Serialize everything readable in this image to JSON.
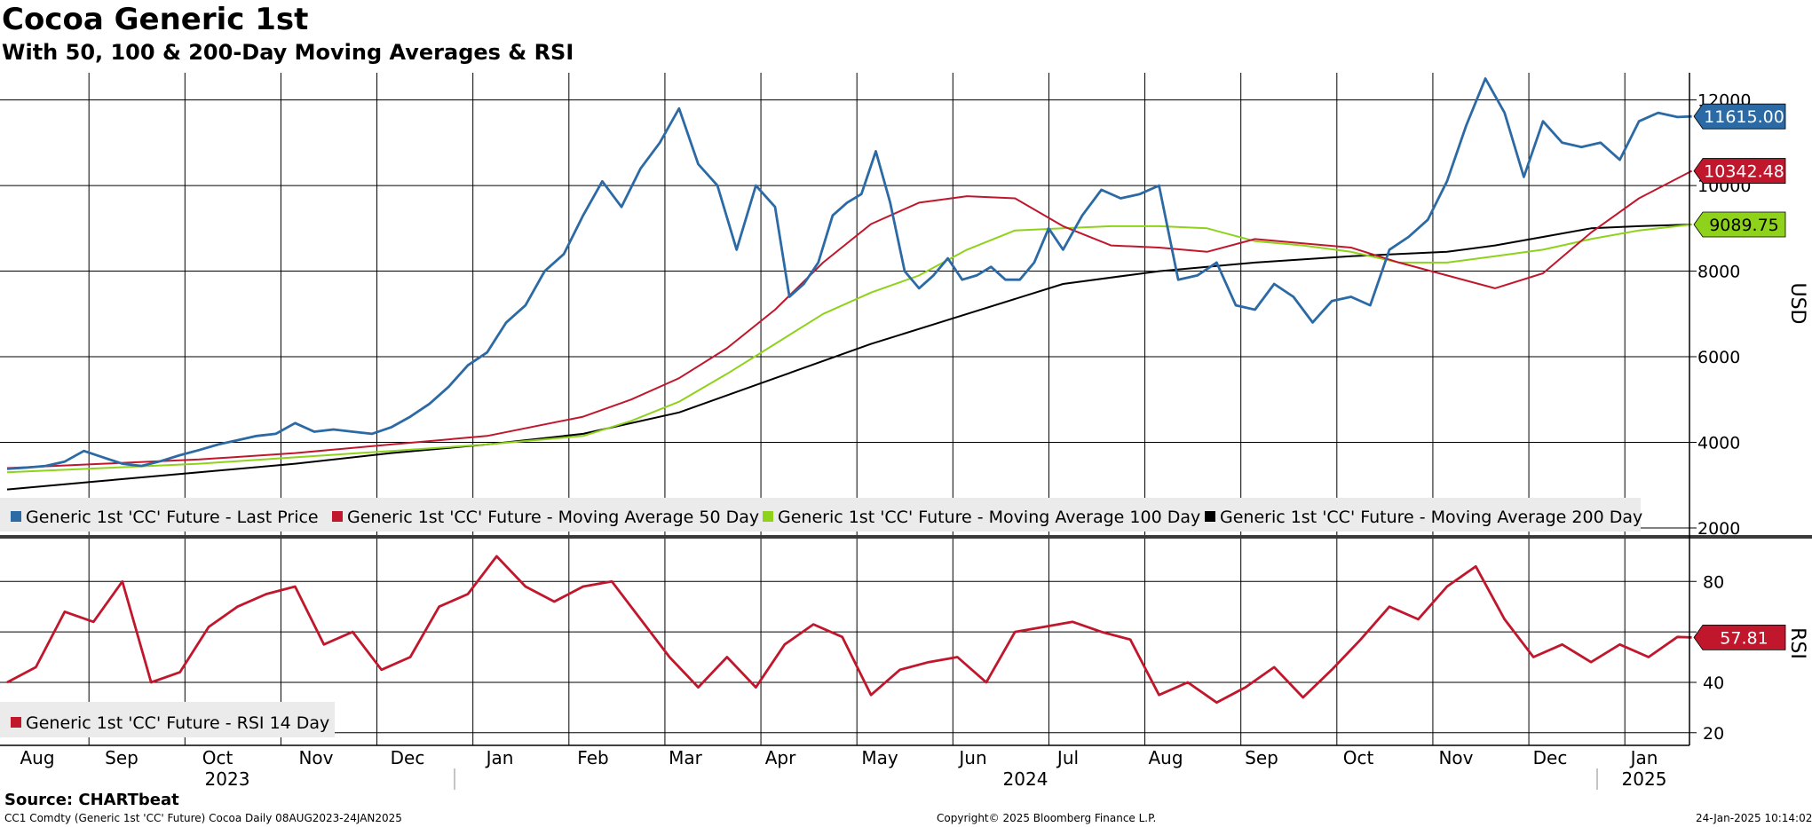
{
  "title": "Cocoa Generic 1st",
  "subtitle": "With 50, 100 & 200-Day Moving Averages & RSI",
  "footer": {
    "source": "Source: CHARTbeat",
    "info": "CC1 Comdty (Generic 1st 'CC' Future) Cocoa  Daily 08AUG2023-24JAN2025",
    "copyright": "Copyright© 2025 Bloomberg Finance L.P.",
    "timestamp": "24-Jan-2025 10:14:02"
  },
  "colors": {
    "last_price": "#2b6aa5",
    "ma50": "#c0172d",
    "ma100": "#8fd21b",
    "ma200": "#000000",
    "rsi": "#c0172d"
  },
  "chart_data": [
    {
      "type": "line",
      "panel": "price",
      "ylabel": "USD",
      "ylim": [
        2000,
        12800
      ],
      "yticks": [
        2000,
        4000,
        6000,
        8000,
        10000,
        12000
      ],
      "grid": true,
      "legend_position": "bottom-left",
      "x_months": [
        "Aug",
        "Sep",
        "Oct",
        "Nov",
        "Dec",
        "Jan",
        "Feb",
        "Mar",
        "Apr",
        "May",
        "Jun",
        "Jul",
        "Aug",
        "Sep",
        "Oct",
        "Nov",
        "Dec",
        "Jan"
      ],
      "x_years": [
        "2023",
        "2024",
        "2025"
      ],
      "x_range": [
        0,
        17.6
      ],
      "series": [
        {
          "name": "Generic 1st 'CC' Future - Last Price",
          "key": "last_price",
          "last_value": "11615.00",
          "x": [
            0,
            0.2,
            0.4,
            0.6,
            0.8,
            1.0,
            1.2,
            1.4,
            1.6,
            1.8,
            2.0,
            2.2,
            2.4,
            2.6,
            2.8,
            3.0,
            3.2,
            3.4,
            3.6,
            3.8,
            4.0,
            4.2,
            4.4,
            4.6,
            4.8,
            5.0,
            5.2,
            5.4,
            5.6,
            5.8,
            6.0,
            6.2,
            6.4,
            6.6,
            6.8,
            7.0,
            7.2,
            7.4,
            7.6,
            7.8,
            8.0,
            8.15,
            8.3,
            8.45,
            8.6,
            8.75,
            8.9,
            9.05,
            9.2,
            9.35,
            9.5,
            9.65,
            9.8,
            9.95,
            10.1,
            10.25,
            10.4,
            10.55,
            10.7,
            10.85,
            11.0,
            11.2,
            11.4,
            11.6,
            11.8,
            12.0,
            12.2,
            12.4,
            12.6,
            12.8,
            13.0,
            13.2,
            13.4,
            13.6,
            13.8,
            14.0,
            14.2,
            14.4,
            14.6,
            14.8,
            15.0,
            15.2,
            15.4,
            15.6,
            15.8,
            16.0,
            16.2,
            16.4,
            16.6,
            16.8,
            17.0,
            17.2,
            17.4,
            17.55
          ],
          "values": [
            3380,
            3410,
            3450,
            3550,
            3800,
            3650,
            3500,
            3450,
            3560,
            3700,
            3820,
            3950,
            4050,
            4150,
            4200,
            4450,
            4250,
            4300,
            4250,
            4200,
            4350,
            4600,
            4900,
            5300,
            5800,
            6100,
            6800,
            7200,
            8000,
            8400,
            9300,
            10100,
            9500,
            10400,
            11000,
            11800,
            10500,
            10000,
            8500,
            10000,
            9500,
            7400,
            7700,
            8200,
            9300,
            9600,
            9800,
            10800,
            9600,
            8000,
            7600,
            7900,
            8300,
            7800,
            7900,
            8100,
            7800,
            7800,
            8200,
            9000,
            8500,
            9300,
            9900,
            9700,
            9800,
            10000,
            7800,
            7900,
            8200,
            7200,
            7100,
            7700,
            7400,
            6800,
            7300,
            7400,
            7200,
            8500,
            8800,
            9200,
            10100,
            11400,
            12500,
            11700,
            10200,
            11500,
            11000,
            10900,
            11000,
            10600,
            11500,
            11700,
            11600,
            11615
          ]
        },
        {
          "name": "Generic 1st 'CC' Future - Moving Average 50 Day",
          "key": "ma50",
          "last_value": "10342.48",
          "x": [
            0,
            1,
            2,
            3,
            4,
            5,
            6,
            6.5,
            7,
            7.5,
            8,
            8.5,
            9,
            9.5,
            10,
            10.5,
            11,
            11.5,
            12,
            12.5,
            13,
            13.5,
            14,
            14.5,
            15,
            15.5,
            16,
            16.5,
            17,
            17.55
          ],
          "values": [
            3400,
            3500,
            3600,
            3750,
            3950,
            4150,
            4600,
            5000,
            5500,
            6200,
            7100,
            8200,
            9100,
            9600,
            9750,
            9700,
            9050,
            8600,
            8550,
            8450,
            8750,
            8650,
            8550,
            8200,
            7900,
            7600,
            7950,
            8900,
            9700,
            10342
          ]
        },
        {
          "name": "Generic 1st 'CC' Future - Moving Average 100 Day",
          "key": "ma100",
          "last_value": "9089.75",
          "x": [
            0,
            1,
            2,
            3,
            4,
            5,
            6,
            6.5,
            7,
            7.5,
            8,
            8.5,
            9,
            9.5,
            10,
            10.5,
            11,
            11.5,
            12,
            12.5,
            13,
            13.5,
            14,
            14.5,
            15,
            15.5,
            16,
            16.5,
            17,
            17.55
          ],
          "values": [
            3300,
            3400,
            3500,
            3650,
            3800,
            3950,
            4150,
            4500,
            4950,
            5600,
            6300,
            7000,
            7500,
            7900,
            8500,
            8950,
            9000,
            9050,
            9050,
            9000,
            8700,
            8600,
            8450,
            8200,
            8200,
            8350,
            8500,
            8750,
            8950,
            9089
          ]
        },
        {
          "name": "Generic 1st 'CC' Future - Moving Average 200 Day",
          "key": "ma200",
          "last_value": "9089.75",
          "x": [
            0,
            1,
            2,
            3,
            4,
            5,
            6,
            7,
            8,
            9,
            10,
            11,
            12,
            13,
            14,
            15,
            15.5,
            16,
            16.5,
            17,
            17.55
          ],
          "values": [
            2900,
            3100,
            3300,
            3500,
            3750,
            3950,
            4200,
            4700,
            5500,
            6300,
            7000,
            7700,
            8000,
            8200,
            8350,
            8450,
            8600,
            8800,
            9000,
            9050,
            9089
          ]
        }
      ]
    },
    {
      "type": "line",
      "panel": "rsi",
      "ylabel": "RSI",
      "ylim": [
        15,
        97
      ],
      "yticks": [
        20,
        40,
        60,
        80
      ],
      "grid": true,
      "legend_position": "bottom-left",
      "series": [
        {
          "name": "Generic 1st 'CC' Future - RSI 14 Day",
          "key": "rsi",
          "last_value": "57.81",
          "x": [
            0,
            0.3,
            0.6,
            0.9,
            1.2,
            1.5,
            1.8,
            2.1,
            2.4,
            2.7,
            3.0,
            3.3,
            3.6,
            3.9,
            4.2,
            4.5,
            4.8,
            5.1,
            5.4,
            5.7,
            6.0,
            6.3,
            6.6,
            6.9,
            7.2,
            7.5,
            7.8,
            8.1,
            8.4,
            8.7,
            9.0,
            9.3,
            9.6,
            9.9,
            10.2,
            10.5,
            10.8,
            11.1,
            11.4,
            11.7,
            12.0,
            12.3,
            12.6,
            12.9,
            13.2,
            13.5,
            13.8,
            14.1,
            14.4,
            14.7,
            15.0,
            15.3,
            15.6,
            15.9,
            16.2,
            16.5,
            16.8,
            17.1,
            17.4,
            17.55
          ],
          "values": [
            40,
            46,
            68,
            64,
            80,
            40,
            44,
            62,
            70,
            75,
            78,
            55,
            60,
            45,
            50,
            70,
            75,
            90,
            78,
            72,
            78,
            80,
            65,
            50,
            38,
            50,
            38,
            55,
            63,
            58,
            35,
            45,
            48,
            50,
            40,
            60,
            62,
            64,
            60,
            57,
            35,
            40,
            32,
            38,
            46,
            34,
            45,
            57,
            70,
            65,
            78,
            86,
            65,
            50,
            55,
            48,
            55,
            50,
            58,
            57.81
          ]
        }
      ]
    }
  ]
}
